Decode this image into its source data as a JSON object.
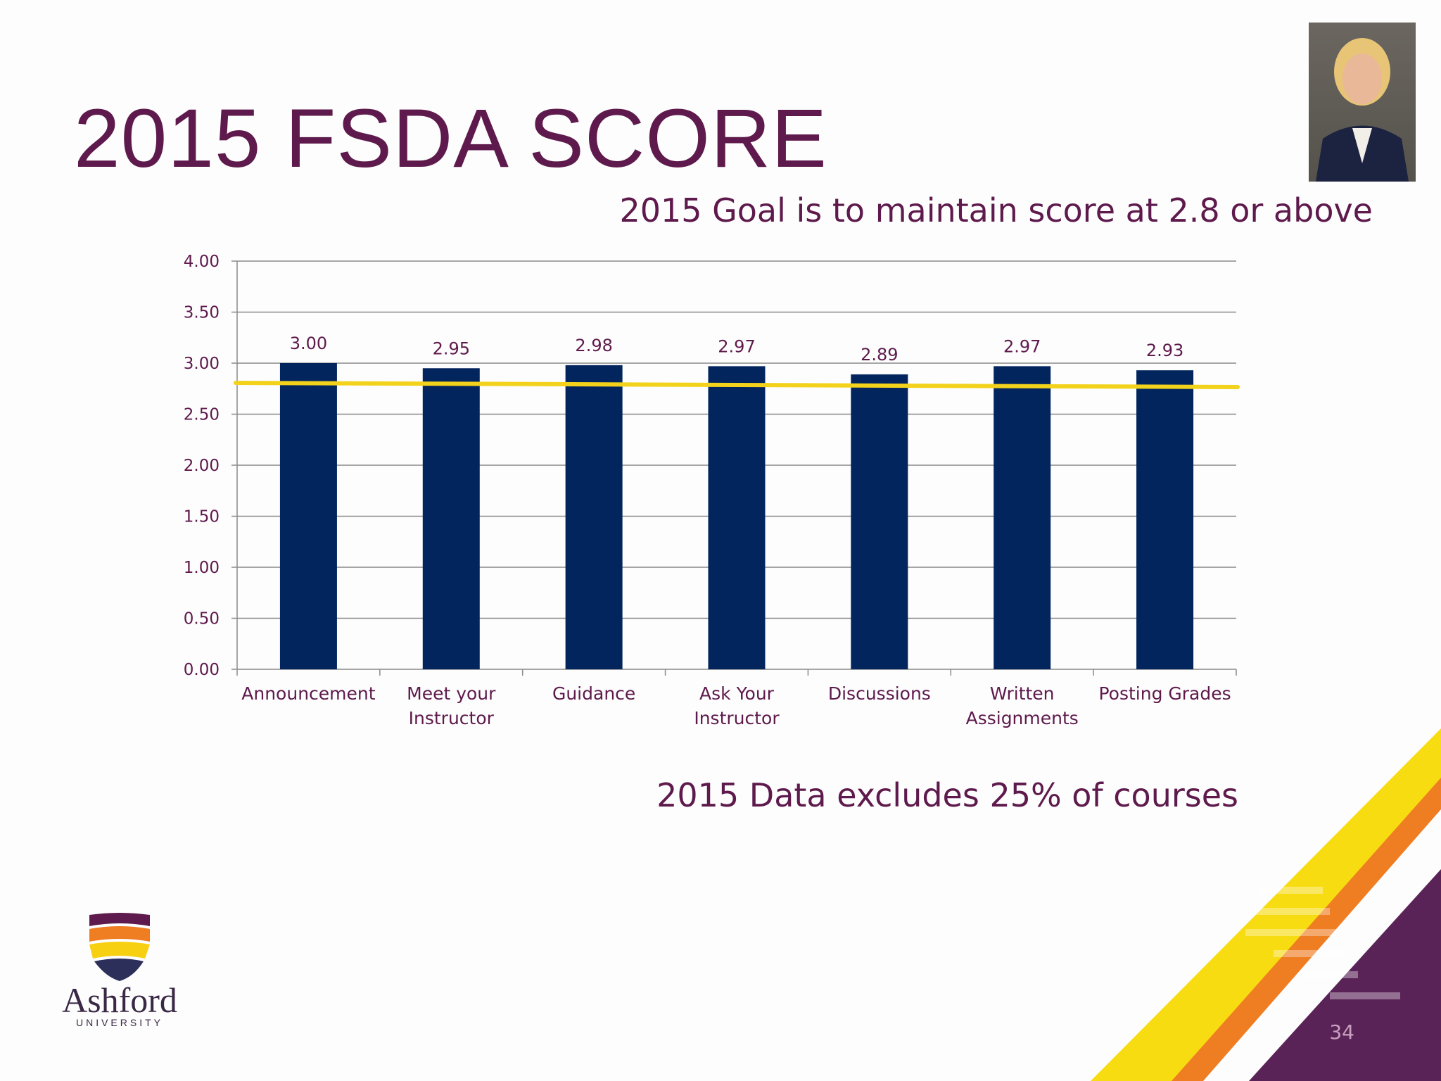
{
  "slide": {
    "title": "2015 FSDA SCORE",
    "goal_text": "2015 Goal is to maintain score  at 2.8 or above",
    "note_text": "2015 Data excludes 25% of courses",
    "page_number": "34",
    "logo": {
      "name": "Ashford",
      "sub": "UNIVERSITY"
    },
    "photo_icon": "person-portrait"
  },
  "chart_data": {
    "type": "bar",
    "categories": [
      [
        "Announcement"
      ],
      [
        "Meet your",
        "Instructor"
      ],
      [
        "Guidance"
      ],
      [
        "Ask Your",
        "Instructor"
      ],
      [
        "Discussions"
      ],
      [
        "Written",
        "Assignments"
      ],
      [
        "Posting Grades"
      ]
    ],
    "values": [
      3.0,
      2.95,
      2.98,
      2.97,
      2.89,
      2.97,
      2.93
    ],
    "data_labels": [
      "3.00",
      "2.95",
      "2.98",
      "2.97",
      "2.89",
      "2.97",
      "2.93"
    ],
    "ylim": [
      0,
      4
    ],
    "y_ticks": [
      "0.00",
      "0.50",
      "1.00",
      "1.50",
      "2.00",
      "2.50",
      "3.00",
      "3.50",
      "4.00"
    ],
    "goal_line": 2.8,
    "grid": true,
    "colors": {
      "bar": "#03255e",
      "goal_line": "#f2d21b",
      "text": "#5e1a4c",
      "grid": "#8a8a8a"
    }
  }
}
